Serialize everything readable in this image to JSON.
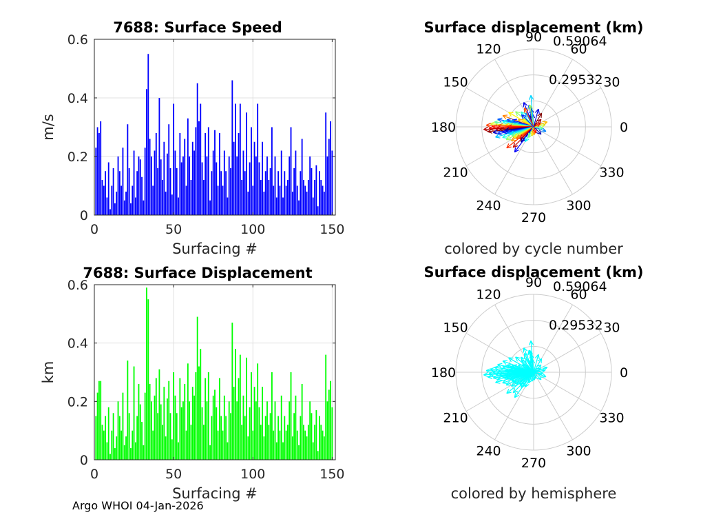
{
  "footer": "Argo WHOI 04-Jan-2026",
  "colors": {
    "speed_bar": "#0000ff",
    "disp_bar": "#00ff00",
    "hemisphere_arrow": "#00ffff",
    "grid": "#e0e0e0",
    "polar_grid": "#cccccc"
  },
  "chart_data": [
    {
      "type": "bar",
      "title": "7688: Surface Speed",
      "xlabel": "Surfacing #",
      "ylabel": "m/s",
      "xlim": [
        0,
        152
      ],
      "ylim": [
        0,
        0.6
      ],
      "xticks": [
        0,
        50,
        100,
        150
      ],
      "xtick_labels": [
        "0",
        "50",
        "100",
        "150"
      ],
      "yticks": [
        0,
        0.2,
        0.4,
        0.6
      ],
      "ytick_labels": [
        "0",
        "0.2",
        "0.4",
        "0.6"
      ],
      "grid": true,
      "bar_color": "#0000ff",
      "x": [
        1,
        2,
        3,
        4,
        5,
        6,
        7,
        8,
        9,
        10,
        11,
        12,
        13,
        14,
        15,
        16,
        17,
        18,
        19,
        20,
        21,
        22,
        23,
        24,
        25,
        26,
        27,
        28,
        29,
        30,
        31,
        32,
        33,
        34,
        35,
        36,
        37,
        38,
        39,
        40,
        41,
        42,
        43,
        44,
        45,
        46,
        47,
        48,
        49,
        50,
        51,
        52,
        53,
        54,
        55,
        56,
        57,
        58,
        59,
        60,
        61,
        62,
        63,
        64,
        65,
        66,
        67,
        68,
        69,
        70,
        71,
        72,
        73,
        74,
        75,
        76,
        77,
        78,
        79,
        80,
        81,
        82,
        83,
        84,
        85,
        86,
        87,
        88,
        89,
        90,
        91,
        92,
        93,
        94,
        95,
        96,
        97,
        98,
        99,
        100,
        101,
        102,
        103,
        104,
        105,
        106,
        107,
        108,
        109,
        110,
        111,
        112,
        113,
        114,
        115,
        116,
        117,
        118,
        119,
        120,
        121,
        122,
        123,
        124,
        125,
        126,
        127,
        128,
        129,
        130,
        131,
        132,
        133,
        134,
        135,
        136,
        137,
        138,
        139,
        140,
        141,
        142,
        143,
        144,
        145,
        146,
        147,
        148,
        149,
        150
      ],
      "values": [
        0.23,
        0.3,
        0.28,
        0.32,
        0.12,
        0.1,
        0.15,
        0.06,
        0.18,
        0.02,
        0.1,
        0.16,
        0.04,
        0.08,
        0.2,
        0.15,
        0.1,
        0.23,
        0.05,
        0.08,
        0.31,
        0.16,
        0.04,
        0.1,
        0.22,
        0.06,
        0.15,
        0.2,
        0.19,
        0.13,
        0.05,
        0.23,
        0.43,
        0.55,
        0.26,
        0.2,
        0.1,
        0.22,
        0.28,
        0.16,
        0.4,
        0.19,
        0.12,
        0.25,
        0.08,
        0.21,
        0.31,
        0.16,
        0.07,
        0.38,
        0.22,
        0.16,
        0.06,
        0.28,
        0.18,
        0.2,
        0.26,
        0.1,
        0.33,
        0.2,
        0.12,
        0.25,
        0.22,
        0.3,
        0.45,
        0.32,
        0.38,
        0.18,
        0.12,
        0.28,
        0.2,
        0.3,
        0.05,
        0.15,
        0.22,
        0.29,
        0.18,
        0.1,
        0.28,
        0.15,
        0.1,
        0.22,
        0.15,
        0.06,
        0.2,
        0.16,
        0.46,
        0.25,
        0.38,
        0.2,
        0.28,
        0.38,
        0.12,
        0.22,
        0.15,
        0.35,
        0.08,
        0.18,
        0.3,
        0.1,
        0.25,
        0.2,
        0.38,
        0.18,
        0.12,
        0.25,
        0.08,
        0.15,
        0.2,
        0.12,
        0.16,
        0.3,
        0.1,
        0.2,
        0.06,
        0.15,
        0.1,
        0.22,
        0.06,
        0.15,
        0.1,
        0.12,
        0.2,
        0.3,
        0.08,
        0.16,
        0.22,
        0.1,
        0.05,
        0.15,
        0.26,
        0.12,
        0.1,
        0.08,
        0.12,
        0.2,
        0.16,
        0.06,
        0.12,
        0.17,
        0.03,
        0.15,
        0.12,
        0.1,
        0.08,
        0.35,
        0.2,
        0.26,
        0.32,
        0.22
      ]
    },
    {
      "type": "bar",
      "title": "7688: Surface Displacement",
      "xlabel": "Surfacing #",
      "ylabel": "km",
      "xlim": [
        0,
        152
      ],
      "ylim": [
        0,
        0.6
      ],
      "xticks": [
        0,
        50,
        100,
        150
      ],
      "xtick_labels": [
        "0",
        "50",
        "100",
        "150"
      ],
      "yticks": [
        0,
        0.2,
        0.4,
        0.6
      ],
      "ytick_labels": [
        "0",
        "0.2",
        "0.4",
        "0.6"
      ],
      "grid": true,
      "bar_color": "#00ff00",
      "x": [
        1,
        2,
        3,
        4,
        5,
        6,
        7,
        8,
        9,
        10,
        11,
        12,
        13,
        14,
        15,
        16,
        17,
        18,
        19,
        20,
        21,
        22,
        23,
        24,
        25,
        26,
        27,
        28,
        29,
        30,
        31,
        32,
        33,
        34,
        35,
        36,
        37,
        38,
        39,
        40,
        41,
        42,
        43,
        44,
        45,
        46,
        47,
        48,
        49,
        50,
        51,
        52,
        53,
        54,
        55,
        56,
        57,
        58,
        59,
        60,
        61,
        62,
        63,
        64,
        65,
        66,
        67,
        68,
        69,
        70,
        71,
        72,
        73,
        74,
        75,
        76,
        77,
        78,
        79,
        80,
        81,
        82,
        83,
        84,
        85,
        86,
        87,
        88,
        89,
        90,
        91,
        92,
        93,
        94,
        95,
        96,
        97,
        98,
        99,
        100,
        101,
        102,
        103,
        104,
        105,
        106,
        107,
        108,
        109,
        110,
        111,
        112,
        113,
        114,
        115,
        116,
        117,
        118,
        119,
        120,
        121,
        122,
        123,
        124,
        125,
        126,
        127,
        128,
        129,
        130,
        131,
        132,
        133,
        134,
        135,
        136,
        137,
        138,
        139,
        140,
        141,
        142,
        143,
        144,
        145,
        146,
        147,
        148,
        149,
        150
      ],
      "values": [
        0.15,
        0.23,
        0.27,
        0.27,
        0.12,
        0.1,
        0.15,
        0.06,
        0.18,
        0.02,
        0.1,
        0.16,
        0.04,
        0.08,
        0.2,
        0.15,
        0.1,
        0.23,
        0.05,
        0.08,
        0.34,
        0.16,
        0.04,
        0.1,
        0.32,
        0.06,
        0.15,
        0.26,
        0.19,
        0.13,
        0.05,
        0.23,
        0.59,
        0.55,
        0.26,
        0.2,
        0.1,
        0.22,
        0.28,
        0.16,
        0.31,
        0.19,
        0.12,
        0.25,
        0.08,
        0.21,
        0.27,
        0.16,
        0.07,
        0.3,
        0.22,
        0.16,
        0.06,
        0.28,
        0.18,
        0.2,
        0.26,
        0.1,
        0.33,
        0.2,
        0.12,
        0.25,
        0.22,
        0.3,
        0.49,
        0.32,
        0.38,
        0.18,
        0.12,
        0.28,
        0.2,
        0.3,
        0.05,
        0.15,
        0.22,
        0.24,
        0.18,
        0.1,
        0.28,
        0.15,
        0.1,
        0.22,
        0.15,
        0.06,
        0.2,
        0.16,
        0.47,
        0.25,
        0.38,
        0.2,
        0.28,
        0.36,
        0.12,
        0.22,
        0.15,
        0.35,
        0.08,
        0.18,
        0.3,
        0.1,
        0.25,
        0.2,
        0.33,
        0.18,
        0.12,
        0.25,
        0.08,
        0.15,
        0.2,
        0.12,
        0.16,
        0.3,
        0.1,
        0.2,
        0.06,
        0.15,
        0.1,
        0.22,
        0.06,
        0.15,
        0.1,
        0.12,
        0.2,
        0.3,
        0.08,
        0.16,
        0.22,
        0.1,
        0.05,
        0.15,
        0.26,
        0.12,
        0.1,
        0.08,
        0.12,
        0.2,
        0.16,
        0.06,
        0.12,
        0.17,
        0.03,
        0.15,
        0.12,
        0.1,
        0.08,
        0.36,
        0.2,
        0.24,
        0.27,
        0.18
      ]
    },
    {
      "type": "polar",
      "title": "Surface displacement (km)",
      "caption": "colored by cycle number",
      "coloring": "cycle",
      "r_max": 0.59064,
      "r_tick_labels": [
        "0.29532",
        "0.59064"
      ],
      "angle_labels": [
        "0",
        "30",
        "60",
        "90",
        "120",
        "150",
        "180",
        "210",
        "240",
        "270",
        "300",
        "330"
      ],
      "vectors": [
        [
          0.1,
          96,
          4
        ],
        [
          0.14,
          98,
          12
        ],
        [
          0.11,
          100,
          22
        ],
        [
          0.17,
          102,
          31
        ],
        [
          0.09,
          108,
          5
        ],
        [
          0.12,
          120,
          40
        ],
        [
          0.15,
          130,
          62
        ],
        [
          0.18,
          140,
          78
        ],
        [
          0.1,
          145,
          90
        ],
        [
          0.22,
          150,
          95
        ],
        [
          0.13,
          155,
          105
        ],
        [
          0.25,
          160,
          112
        ],
        [
          0.17,
          162,
          20
        ],
        [
          0.21,
          165,
          28
        ],
        [
          0.19,
          167,
          45
        ],
        [
          0.28,
          168,
          33
        ],
        [
          0.24,
          170,
          58
        ],
        [
          0.15,
          172,
          66
        ],
        [
          0.3,
          173,
          70
        ],
        [
          0.19,
          175,
          84
        ],
        [
          0.33,
          176,
          88
        ],
        [
          0.22,
          177,
          100
        ],
        [
          0.27,
          178,
          118
        ],
        [
          0.36,
          178,
          122
        ],
        [
          0.31,
          180,
          126
        ],
        [
          0.2,
          180,
          130
        ],
        [
          0.34,
          182,
          134
        ],
        [
          0.29,
          183,
          138
        ],
        [
          0.38,
          183,
          142
        ],
        [
          0.26,
          185,
          146
        ],
        [
          0.35,
          186,
          148
        ],
        [
          0.22,
          187,
          2
        ],
        [
          0.31,
          188,
          10
        ],
        [
          0.24,
          190,
          15
        ],
        [
          0.28,
          191,
          26
        ],
        [
          0.21,
          193,
          35
        ],
        [
          0.3,
          195,
          48
        ],
        [
          0.19,
          197,
          52
        ],
        [
          0.25,
          199,
          60
        ],
        [
          0.18,
          202,
          72
        ],
        [
          0.23,
          205,
          80
        ],
        [
          0.17,
          208,
          92
        ],
        [
          0.2,
          212,
          108
        ],
        [
          0.16,
          215,
          115
        ],
        [
          0.26,
          218,
          124
        ],
        [
          0.14,
          222,
          136
        ],
        [
          0.22,
          225,
          140
        ],
        [
          0.15,
          230,
          3
        ],
        [
          0.24,
          233,
          18
        ],
        [
          0.13,
          240,
          55
        ],
        [
          0.09,
          245,
          75
        ],
        [
          0.07,
          260,
          98
        ],
        [
          0.06,
          275,
          110
        ],
        [
          0.05,
          290,
          128
        ],
        [
          0.08,
          315,
          8
        ],
        [
          0.1,
          340,
          38
        ],
        [
          0.07,
          350,
          68
        ],
        [
          0.09,
          10,
          85
        ],
        [
          0.11,
          20,
          104
        ],
        [
          0.06,
          30,
          132
        ],
        [
          0.08,
          45,
          144
        ],
        [
          0.12,
          60,
          150
        ],
        [
          0.14,
          75,
          14
        ],
        [
          0.24,
          95,
          50
        ],
        [
          0.17,
          100,
          82
        ],
        [
          0.2,
          112,
          16
        ],
        [
          0.16,
          116,
          120
        ],
        [
          0.13,
          135,
          25
        ]
      ]
    },
    {
      "type": "polar",
      "title": "Surface displacement (km)",
      "caption": "colored by hemisphere",
      "coloring": "hemisphere",
      "r_max": 0.59064,
      "r_tick_labels": [
        "0.29532",
        "0.59064"
      ],
      "angle_labels": [
        "0",
        "30",
        "60",
        "90",
        "120",
        "150",
        "180",
        "210",
        "240",
        "270",
        "300",
        "330"
      ],
      "vectors": [
        [
          0.1,
          96,
          4
        ],
        [
          0.14,
          98,
          12
        ],
        [
          0.11,
          100,
          22
        ],
        [
          0.17,
          102,
          31
        ],
        [
          0.09,
          108,
          5
        ],
        [
          0.12,
          120,
          40
        ],
        [
          0.15,
          130,
          62
        ],
        [
          0.18,
          140,
          78
        ],
        [
          0.1,
          145,
          90
        ],
        [
          0.22,
          150,
          95
        ],
        [
          0.13,
          155,
          105
        ],
        [
          0.25,
          160,
          112
        ],
        [
          0.17,
          162,
          20
        ],
        [
          0.21,
          165,
          28
        ],
        [
          0.19,
          167,
          45
        ],
        [
          0.28,
          168,
          33
        ],
        [
          0.24,
          170,
          58
        ],
        [
          0.15,
          172,
          66
        ],
        [
          0.3,
          173,
          70
        ],
        [
          0.19,
          175,
          84
        ],
        [
          0.33,
          176,
          88
        ],
        [
          0.22,
          177,
          100
        ],
        [
          0.27,
          178,
          118
        ],
        [
          0.36,
          178,
          122
        ],
        [
          0.31,
          180,
          126
        ],
        [
          0.2,
          180,
          130
        ],
        [
          0.34,
          182,
          134
        ],
        [
          0.29,
          183,
          138
        ],
        [
          0.38,
          183,
          142
        ],
        [
          0.26,
          185,
          146
        ],
        [
          0.35,
          186,
          148
        ],
        [
          0.22,
          187,
          2
        ],
        [
          0.31,
          188,
          10
        ],
        [
          0.24,
          190,
          15
        ],
        [
          0.28,
          191,
          26
        ],
        [
          0.21,
          193,
          35
        ],
        [
          0.3,
          195,
          48
        ],
        [
          0.19,
          197,
          52
        ],
        [
          0.25,
          199,
          60
        ],
        [
          0.18,
          202,
          72
        ],
        [
          0.23,
          205,
          80
        ],
        [
          0.17,
          208,
          92
        ],
        [
          0.2,
          212,
          108
        ],
        [
          0.16,
          215,
          115
        ],
        [
          0.26,
          218,
          124
        ],
        [
          0.14,
          222,
          136
        ],
        [
          0.22,
          225,
          140
        ],
        [
          0.15,
          230,
          3
        ],
        [
          0.24,
          233,
          18
        ],
        [
          0.13,
          240,
          55
        ],
        [
          0.09,
          245,
          75
        ],
        [
          0.07,
          260,
          98
        ],
        [
          0.06,
          275,
          110
        ],
        [
          0.05,
          290,
          128
        ],
        [
          0.08,
          315,
          8
        ],
        [
          0.1,
          340,
          38
        ],
        [
          0.07,
          350,
          68
        ],
        [
          0.09,
          10,
          85
        ],
        [
          0.11,
          20,
          104
        ],
        [
          0.06,
          30,
          132
        ],
        [
          0.08,
          45,
          144
        ],
        [
          0.12,
          60,
          150
        ],
        [
          0.14,
          75,
          14
        ],
        [
          0.24,
          95,
          50
        ],
        [
          0.17,
          100,
          82
        ],
        [
          0.2,
          112,
          16
        ],
        [
          0.16,
          116,
          120
        ],
        [
          0.13,
          135,
          25
        ]
      ]
    }
  ]
}
